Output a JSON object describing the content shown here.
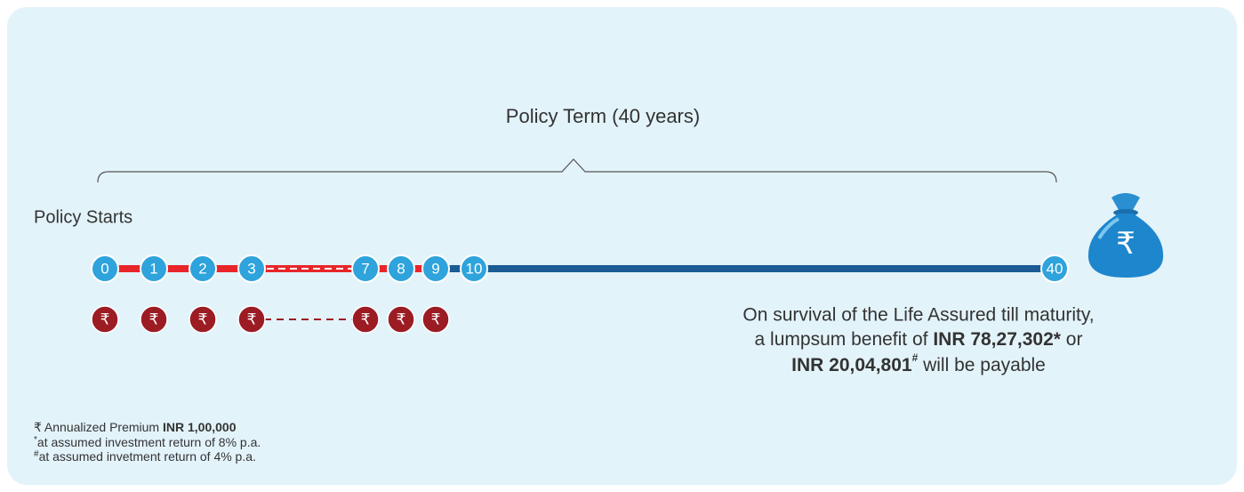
{
  "header": {
    "title": "Policy Term (40 years)"
  },
  "start_label": "Policy Starts",
  "timeline": {
    "labels": [
      "0",
      "1",
      "2",
      "3",
      "7",
      "8",
      "9",
      "10",
      "40"
    ]
  },
  "premium_symbol": "₹",
  "maturity": {
    "line1": "On survival of the Life Assured till maturity,",
    "line2_text": "a lumpsum benefit of ",
    "amount1": "INR 78,27,302*",
    "or": " or",
    "amount2": "INR 20,04,801",
    "amount2_mark": "#",
    "line3_text": " will be payable"
  },
  "footnotes": {
    "premium_text": "Annualized Premium ",
    "premium_amount": "INR 1,00,000",
    "note1_mark": "*",
    "note1": "at assumed investment return of 8% p.a.",
    "note2_mark": "#",
    "note2": "at assumed invetment return of 4% p.a."
  }
}
